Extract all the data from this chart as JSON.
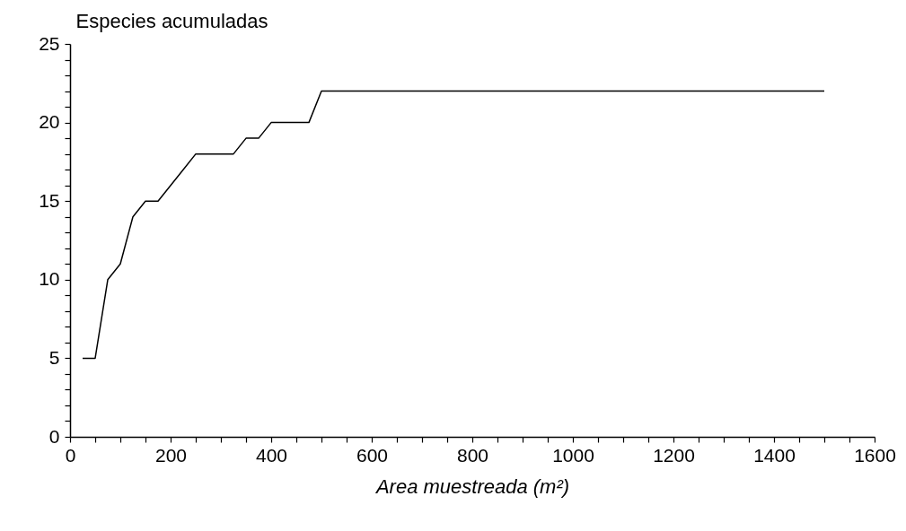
{
  "chart_data": {
    "type": "line",
    "xlabel": "Area muestreada (m²)",
    "ylabel": "Especies acumuladas",
    "x": [
      25,
      50,
      75,
      100,
      125,
      150,
      175,
      200,
      225,
      250,
      325,
      350,
      375,
      400,
      475,
      500,
      1500
    ],
    "series": [
      {
        "color": "#000000",
        "values": [
          5,
          5,
          10,
          11,
          14,
          15,
          15,
          16,
          17,
          18,
          18,
          19,
          19,
          20,
          20,
          22,
          22
        ]
      }
    ],
    "xlim": [
      0,
      1600
    ],
    "xticks": [
      0,
      {
        "value": 50,
        "label": null
      },
      {
        "value": 100,
        "label": null
      },
      {
        "value": 150,
        "label": null
      },
      200,
      {
        "value": 250,
        "label": null
      },
      {
        "value": 300,
        "label": null
      },
      {
        "value": 350,
        "label": null
      },
      400,
      {
        "value": 450,
        "label": null
      },
      {
        "value": 500,
        "label": null
      },
      {
        "value": 550,
        "label": null
      },
      600,
      {
        "value": 650,
        "label": null
      },
      {
        "value": 700,
        "label": null
      },
      {
        "value": 750,
        "label": null
      },
      800,
      {
        "value": 850,
        "label": null
      },
      {
        "value": 900,
        "label": null
      },
      {
        "value": 950,
        "label": null
      },
      1000,
      {
        "value": 1050,
        "label": null
      },
      {
        "value": 1100,
        "label": null
      },
      {
        "value": 1150,
        "label": null
      },
      1200,
      {
        "value": 1250,
        "label": null
      },
      {
        "value": 1300,
        "label": null
      },
      {
        "value": 1350,
        "label": null
      },
      1400,
      {
        "value": 1450,
        "label": null
      },
      {
        "value": 1500,
        "label": null
      },
      {
        "value": 1550,
        "label": null
      },
      1600
    ],
    "ylim": [
      0,
      25
    ],
    "yticks": [
      0,
      {
        "value": 1,
        "label": null
      },
      {
        "value": 2,
        "label": null
      },
      {
        "value": 3,
        "label": null
      },
      {
        "value": 4,
        "label": null
      },
      5,
      {
        "value": 6,
        "label": null
      },
      {
        "value": 7,
        "label": null
      },
      {
        "value": 8,
        "label": null
      },
      {
        "value": 9,
        "label": null
      },
      10,
      {
        "value": 11,
        "label": null
      },
      {
        "value": 12,
        "label": null
      },
      {
        "value": 13,
        "label": null
      },
      {
        "value": 14,
        "label": null
      },
      15,
      {
        "value": 16,
        "label": null
      },
      {
        "value": 17,
        "label": null
      },
      {
        "value": 18,
        "label": null
      },
      {
        "value": 19,
        "label": null
      },
      20,
      {
        "value": 21,
        "label": null
      },
      {
        "value": 22,
        "label": null
      },
      {
        "value": 23,
        "label": null
      },
      {
        "value": 24,
        "label": null
      },
      25
    ]
  }
}
